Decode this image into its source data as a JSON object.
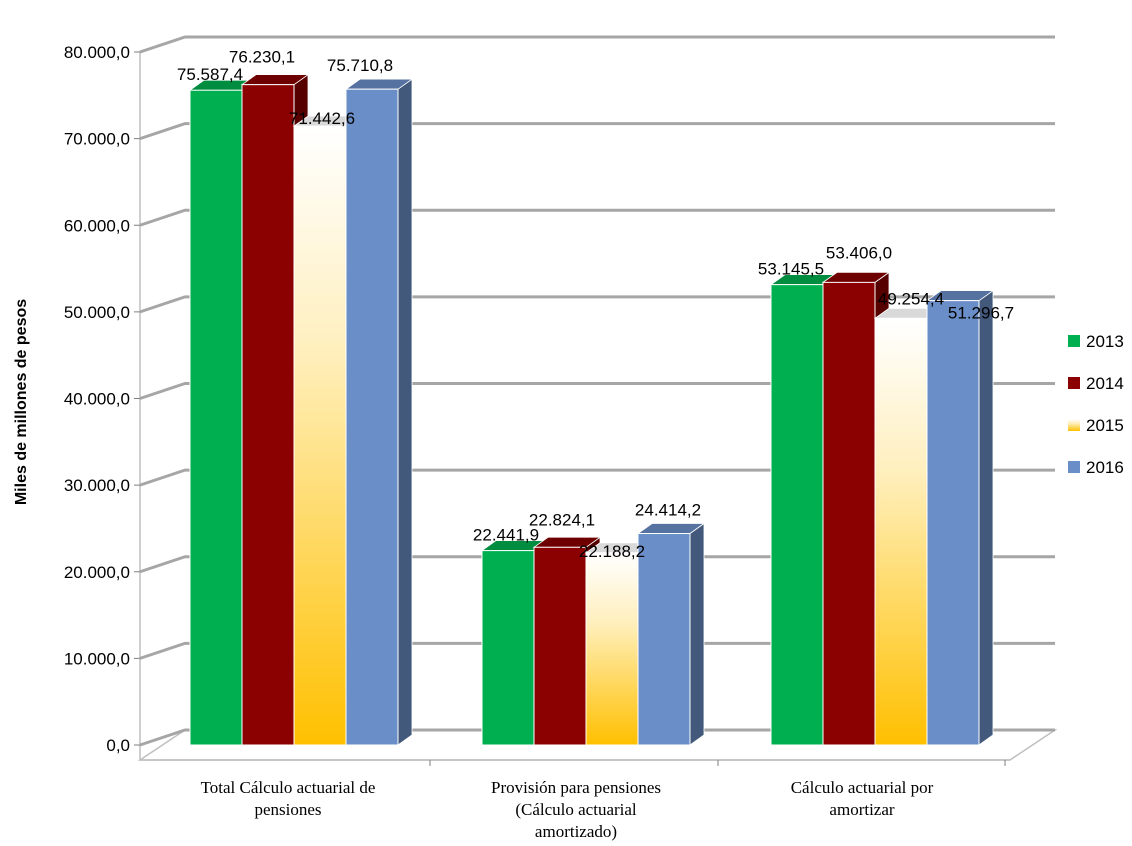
{
  "chart_data": {
    "type": "bar",
    "title": "",
    "xlabel": "",
    "ylabel": "Miles de millones de pesos",
    "categories": [
      [
        "Total Cálculo actuarial de",
        "pensiones"
      ],
      [
        "Provisión para pensiones",
        "(Cálculo actuarial",
        "amortizado)"
      ],
      [
        "Cálculo actuarial por",
        "amortizar"
      ]
    ],
    "series": [
      {
        "name": "2013",
        "values": [
          75587.4,
          22441.9,
          53145.5
        ],
        "labels": [
          "75.587,4",
          "22.441,9",
          "53.145,5"
        ],
        "color": "#00B050"
      },
      {
        "name": "2014",
        "values": [
          76230.1,
          22824.1,
          53406.0
        ],
        "labels": [
          "76.230,1",
          "22.824,1",
          "53.406,0"
        ],
        "color": "#8B0000"
      },
      {
        "name": "2015",
        "values": [
          71442.6,
          22188.2,
          49254.4
        ],
        "labels": [
          "71.442,6",
          "22.188,2",
          "49.254,4"
        ],
        "color": "#FFC000"
      },
      {
        "name": "2016",
        "values": [
          75710.8,
          24414.2,
          51296.7
        ],
        "labels": [
          "75.710,8",
          "24.414,2",
          "51.296,7"
        ],
        "color": "#6A8FC8"
      }
    ],
    "ylim": [
      0,
      80000
    ],
    "yticks": [
      "0,0",
      "10.000,0",
      "20.000,0",
      "30.000,0",
      "40.000,0",
      "50.000,0",
      "60.000,0",
      "70.000,0",
      "80.000,0"
    ],
    "grid": true,
    "legend": "right",
    "style": "3d-column"
  }
}
